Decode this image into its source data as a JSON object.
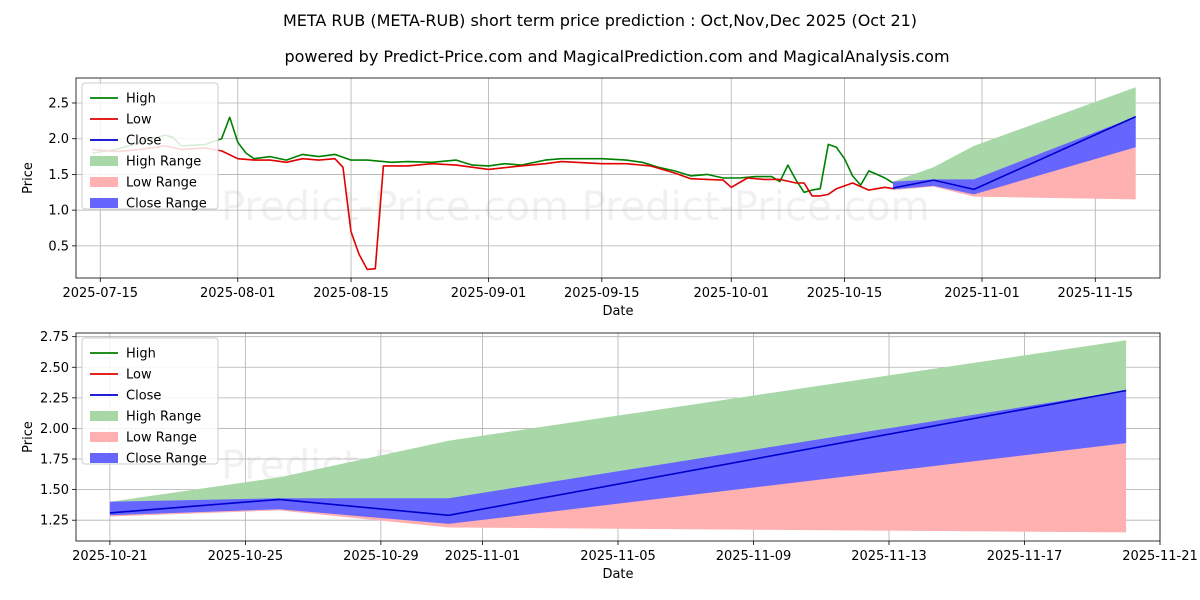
{
  "page": {
    "title": "META RUB (META-RUB) short term price prediction : Oct,Nov,Dec 2025 (Oct 21)",
    "subtitle": "powered by Predict-Price.com and MagicalPrediction.com and MagicalAnalysis.com",
    "watermark": "Predict-Price.com   Predict-Price.com"
  },
  "colors": {
    "high": "#008000",
    "low": "#e00000",
    "close": "#0000cc",
    "high_range": "#a8d8a8",
    "low_range": "#ffb0b0",
    "close_range": "#6666ff"
  },
  "chart_data": [
    {
      "type": "line",
      "name": "history-and-forecast",
      "xlabel": "Date",
      "ylabel": "Price",
      "xlim": [
        "2025-07-12",
        "2025-11-23"
      ],
      "ylim": [
        0.05,
        2.85
      ],
      "xticks": [
        "2025-07-15",
        "2025-08-01",
        "2025-08-15",
        "2025-09-01",
        "2025-09-15",
        "2025-10-01",
        "2025-10-15",
        "2025-11-01",
        "2025-11-15"
      ],
      "yticks": [
        0.5,
        1.0,
        1.5,
        2.0,
        2.5
      ],
      "ytick_labels": [
        "0.5",
        "1.0",
        "1.5",
        "2.0",
        "2.5"
      ],
      "legend": [
        "High",
        "Low",
        "Close",
        "High Range",
        "Low Range",
        "Close Range"
      ],
      "legend_position": "upper-left",
      "high": {
        "x": [
          "2025-07-14",
          "2025-07-17",
          "2025-07-20",
          "2025-07-23",
          "2025-07-24",
          "2025-07-25",
          "2025-07-28",
          "2025-07-30",
          "2025-07-31",
          "2025-08-01",
          "2025-08-02",
          "2025-08-03",
          "2025-08-05",
          "2025-08-07",
          "2025-08-09",
          "2025-08-11",
          "2025-08-13",
          "2025-08-15",
          "2025-08-17",
          "2025-08-20",
          "2025-08-22",
          "2025-08-25",
          "2025-08-28",
          "2025-08-30",
          "2025-09-01",
          "2025-09-03",
          "2025-09-05",
          "2025-09-08",
          "2025-09-10",
          "2025-09-12",
          "2025-09-15",
          "2025-09-18",
          "2025-09-20",
          "2025-09-22",
          "2025-09-24",
          "2025-09-26",
          "2025-09-28",
          "2025-09-30",
          "2025-10-02",
          "2025-10-04",
          "2025-10-06",
          "2025-10-07",
          "2025-10-08",
          "2025-10-09",
          "2025-10-10",
          "2025-10-11",
          "2025-10-12",
          "2025-10-13",
          "2025-10-14",
          "2025-10-15",
          "2025-10-16",
          "2025-10-17",
          "2025-10-18",
          "2025-10-19",
          "2025-10-20",
          "2025-10-21"
        ],
        "values": [
          1.8,
          1.85,
          1.95,
          2.05,
          2.02,
          1.9,
          1.92,
          2.0,
          2.3,
          1.95,
          1.8,
          1.72,
          1.75,
          1.7,
          1.78,
          1.75,
          1.78,
          1.7,
          1.7,
          1.67,
          1.68,
          1.67,
          1.7,
          1.63,
          1.62,
          1.65,
          1.63,
          1.7,
          1.72,
          1.72,
          1.72,
          1.7,
          1.67,
          1.6,
          1.55,
          1.48,
          1.5,
          1.45,
          1.45,
          1.47,
          1.47,
          1.4,
          1.63,
          1.42,
          1.25,
          1.28,
          1.3,
          1.92,
          1.88,
          1.72,
          1.48,
          1.35,
          1.55,
          1.5,
          1.45,
          1.38
        ]
      },
      "low": {
        "x": [
          "2025-07-14",
          "2025-07-17",
          "2025-07-20",
          "2025-07-23",
          "2025-07-25",
          "2025-07-28",
          "2025-07-30",
          "2025-08-01",
          "2025-08-03",
          "2025-08-05",
          "2025-08-07",
          "2025-08-09",
          "2025-08-11",
          "2025-08-13",
          "2025-08-14",
          "2025-08-15",
          "2025-08-16",
          "2025-08-17",
          "2025-08-18",
          "2025-08-19",
          "2025-08-22",
          "2025-08-25",
          "2025-08-28",
          "2025-09-01",
          "2025-09-05",
          "2025-09-08",
          "2025-09-10",
          "2025-09-15",
          "2025-09-18",
          "2025-09-21",
          "2025-09-24",
          "2025-09-26",
          "2025-09-28",
          "2025-09-30",
          "2025-10-01",
          "2025-10-03",
          "2025-10-05",
          "2025-10-07",
          "2025-10-09",
          "2025-10-10",
          "2025-10-11",
          "2025-10-12",
          "2025-10-13",
          "2025-10-14",
          "2025-10-16",
          "2025-10-18",
          "2025-10-20",
          "2025-10-21"
        ],
        "values": [
          1.85,
          1.82,
          1.85,
          1.9,
          1.85,
          1.87,
          1.83,
          1.72,
          1.7,
          1.7,
          1.67,
          1.72,
          1.7,
          1.72,
          1.6,
          0.7,
          0.38,
          0.17,
          0.18,
          1.62,
          1.62,
          1.65,
          1.63,
          1.57,
          1.62,
          1.65,
          1.68,
          1.65,
          1.65,
          1.62,
          1.52,
          1.44,
          1.43,
          1.42,
          1.32,
          1.45,
          1.43,
          1.43,
          1.38,
          1.38,
          1.2,
          1.2,
          1.22,
          1.3,
          1.38,
          1.28,
          1.32,
          1.3
        ]
      },
      "close": {
        "x": [
          "2025-10-21",
          "2025-10-26",
          "2025-10-31",
          "2025-11-20"
        ],
        "values": [
          1.31,
          1.42,
          1.29,
          2.31
        ]
      },
      "range_x": [
        "2025-10-21",
        "2025-10-26",
        "2025-10-31",
        "2025-11-20"
      ],
      "high_range": {
        "upper": [
          1.4,
          1.6,
          1.9,
          2.72
        ],
        "lower": [
          1.3,
          1.38,
          1.25,
          1.88
        ]
      },
      "low_range": {
        "upper": [
          1.34,
          1.4,
          1.27,
          1.88
        ],
        "lower": [
          1.28,
          1.33,
          1.19,
          1.15
        ]
      },
      "close_range": {
        "upper": [
          1.4,
          1.43,
          1.43,
          2.31
        ],
        "lower": [
          1.29,
          1.34,
          1.22,
          1.88
        ]
      }
    },
    {
      "type": "line",
      "name": "forecast-detail",
      "xlabel": "Date",
      "ylabel": "Price",
      "xlim": [
        "2025-10-20",
        "2025-11-21"
      ],
      "ylim": [
        1.08,
        2.78
      ],
      "xticks": [
        "2025-10-21",
        "2025-10-25",
        "2025-10-29",
        "2025-11-01",
        "2025-11-05",
        "2025-11-09",
        "2025-11-13",
        "2025-11-17",
        "2025-11-21"
      ],
      "yticks": [
        1.25,
        1.5,
        1.75,
        2.0,
        2.25,
        2.5,
        2.75
      ],
      "ytick_labels": [
        "1.25",
        "1.50",
        "1.75",
        "2.00",
        "2.25",
        "2.50",
        "2.75"
      ],
      "legend": [
        "High",
        "Low",
        "Close",
        "High Range",
        "Low Range",
        "Close Range"
      ],
      "legend_position": "upper-left",
      "close": {
        "x": [
          "2025-10-21",
          "2025-10-26",
          "2025-10-31",
          "2025-11-20"
        ],
        "values": [
          1.31,
          1.42,
          1.29,
          2.31
        ]
      },
      "range_x": [
        "2025-10-21",
        "2025-10-26",
        "2025-10-31",
        "2025-11-20"
      ],
      "high_range": {
        "upper": [
          1.4,
          1.6,
          1.9,
          2.72
        ],
        "lower": [
          1.3,
          1.38,
          1.25,
          1.88
        ]
      },
      "low_range": {
        "upper": [
          1.34,
          1.4,
          1.27,
          1.88
        ],
        "lower": [
          1.28,
          1.33,
          1.19,
          1.15
        ]
      },
      "close_range": {
        "upper": [
          1.4,
          1.43,
          1.43,
          2.31
        ],
        "lower": [
          1.29,
          1.34,
          1.22,
          1.88
        ]
      }
    }
  ]
}
